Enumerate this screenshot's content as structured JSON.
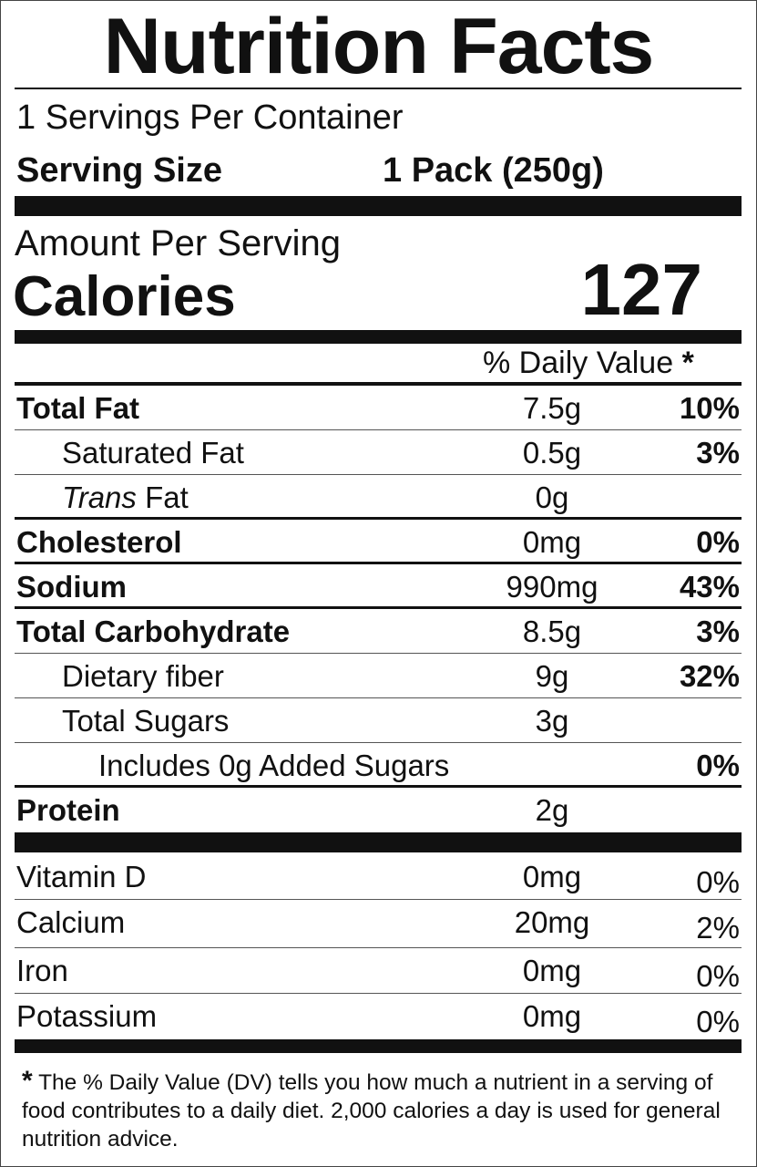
{
  "title": "Nutrition Facts",
  "servings_per_container": "1 Servings Per Container",
  "serving_size_label": "Serving Size",
  "serving_size_value": "1 Pack (250g)",
  "amount_per_serving": "Amount Per Serving",
  "calories_label": "Calories",
  "calories_value": "127",
  "daily_value_header": "% Daily Value",
  "asterisk": "*",
  "nutrients": [
    {
      "label": "Total Fat",
      "amount": "7.5g",
      "pct": "10%"
    },
    {
      "label": "Saturated Fat",
      "amount": "0.5g",
      "pct": "3%"
    },
    {
      "label_italic": "Trans",
      "label": " Fat",
      "amount": "0g",
      "pct": ""
    },
    {
      "label": "Cholesterol",
      "amount": "0mg",
      "pct": "0%"
    },
    {
      "label": "Sodium",
      "amount": "990mg",
      "pct": "43%"
    },
    {
      "label": "Total Carbohydrate",
      "amount": "8.5g",
      "pct": "3%"
    },
    {
      "label": "Dietary fiber",
      "amount": "9g",
      "pct": "32%"
    },
    {
      "label": "Total Sugars",
      "amount": "3g",
      "pct": ""
    },
    {
      "label": "Includes 0g Added Sugars",
      "amount": "",
      "pct": "0%"
    },
    {
      "label": "Protein",
      "amount": "2g",
      "pct": ""
    }
  ],
  "vitamins": [
    {
      "label": "Vitamin D",
      "amount": "0mg",
      "pct": "0%"
    },
    {
      "label": "Calcium",
      "amount": "20mg",
      "pct": "2%"
    },
    {
      "label": "Iron",
      "amount": "0mg",
      "pct": "0%"
    },
    {
      "label": "Potassium",
      "amount": "0mg",
      "pct": "0%"
    }
  ],
  "footnote": "The % Daily Value (DV) tells you how much a nutrient in a serving of food contributes to a daily diet. 2,000 calories a day is used for general nutrition advice."
}
